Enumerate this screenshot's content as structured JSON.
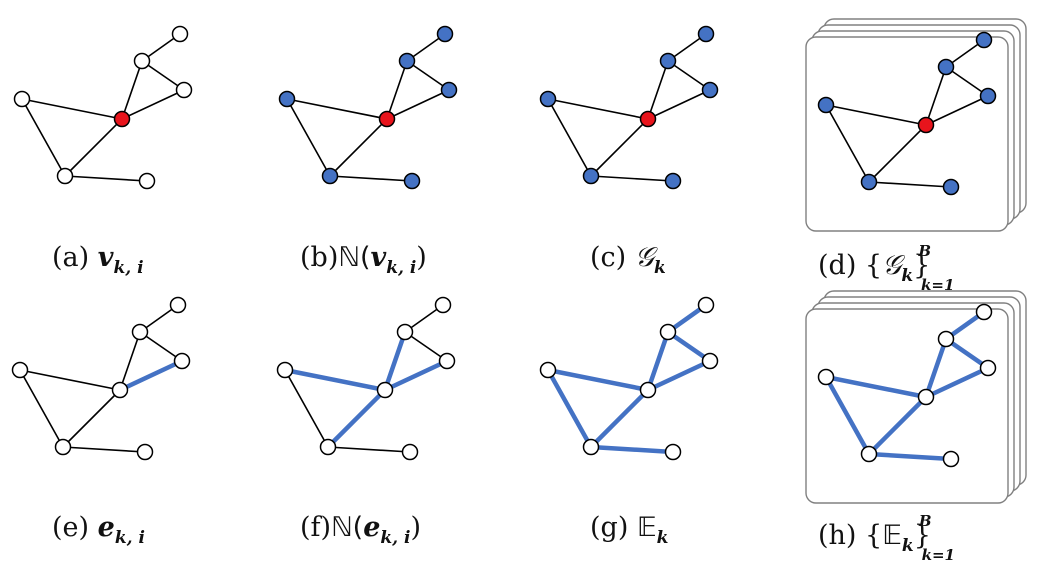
{
  "colors": {
    "blue": "#4472c4",
    "red": "#e8141c",
    "stroke": "#000000",
    "stack_border": "#808080"
  },
  "panels": [
    {
      "id": "a",
      "label": "(a) ",
      "symbol": "v",
      "sub": "k, i",
      "mode": "node"
    },
    {
      "id": "b",
      "label": "(b)",
      "prefix": "ℕ(",
      "symbol": "v",
      "sub": "k, i",
      "suffix": ")",
      "mode": "node-neighborhood"
    },
    {
      "id": "c",
      "label": "(c) ",
      "symbol": "𝒢",
      "sub": "k",
      "mode": "graph"
    },
    {
      "id": "d",
      "label": "(d) {",
      "symbol": "𝒢",
      "sub": "k",
      "brace": "}",
      "sup": "B",
      "lim": "k=1",
      "mode": "graph-batch"
    },
    {
      "id": "e",
      "label": "(e) ",
      "symbol": "e",
      "sub": "k, i",
      "mode": "edge"
    },
    {
      "id": "f",
      "label": "(f)",
      "prefix": "ℕ(",
      "symbol": "e",
      "sub": "k, i",
      "suffix": ")",
      "mode": "edge-neighborhood"
    },
    {
      "id": "g",
      "label": "(g) ",
      "symbol": "𝔼",
      "sub": "k",
      "mode": "edges"
    },
    {
      "id": "h",
      "label": "(h) {",
      "symbol": "𝔼",
      "sub": "k",
      "brace": "}",
      "sup": "B",
      "lim": "k=1",
      "mode": "edges-batch"
    }
  ]
}
